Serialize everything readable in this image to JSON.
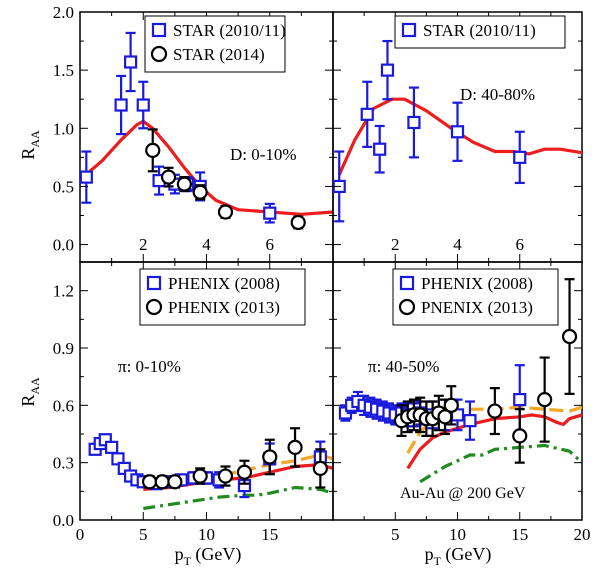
{
  "colors": {
    "star_old": "#1a1adc",
    "star_new": "#000000",
    "model_solid": "#ee1c1c",
    "model_dash_orange": "#f5a623",
    "model_dashdot_green": "#1e8c1e"
  },
  "labels": {
    "raa": "R",
    "raa_sub": "AA",
    "pt": "p",
    "pt_sub": "T",
    "pt_unit": " (GeV)",
    "collision": "Au-Au @ 200 GeV"
  },
  "chart_data": [
    {
      "id": "top_left",
      "type": "scatter",
      "annotation": "D: 0-10%",
      "ylabel": "R_AA",
      "xlim": [
        0,
        8
      ],
      "ylim": [
        -0.15,
        2.0
      ],
      "yticks": [
        "0.0",
        "0.5",
        "1.0",
        "1.5",
        "2.0"
      ],
      "xticks": [
        "2",
        "4",
        "6"
      ],
      "legend": [
        {
          "marker": "square",
          "label": "STAR (2010/11)"
        },
        {
          "marker": "circle",
          "label": "STAR (2014)"
        }
      ],
      "series": [
        {
          "name": "STAR (2010/11)",
          "marker": "square",
          "points": [
            [
              0.2,
              0.58,
              0.22
            ],
            [
              1.3,
              1.2,
              0.25
            ],
            [
              1.6,
              1.57,
              0.25
            ],
            [
              2.0,
              1.2,
              0.2
            ],
            [
              2.5,
              0.55,
              0.12
            ],
            [
              3.0,
              0.52,
              0.08
            ],
            [
              3.4,
              0.52,
              0.06
            ],
            [
              3.8,
              0.5,
              0.12
            ],
            [
              6.0,
              0.27,
              0.08
            ]
          ]
        },
        {
          "name": "STAR (2014)",
          "marker": "circle",
          "points": [
            [
              2.3,
              0.81,
              0.18
            ],
            [
              2.8,
              0.58,
              0.08
            ],
            [
              3.3,
              0.52,
              0.06
            ],
            [
              3.8,
              0.45,
              0.06
            ],
            [
              4.6,
              0.28,
              0.05
            ],
            [
              6.9,
              0.19,
              0.05
            ]
          ]
        }
      ],
      "curves": [
        {
          "style": "solid",
          "points": [
            [
              0.1,
              0.58
            ],
            [
              0.7,
              0.72
            ],
            [
              1.3,
              0.9
            ],
            [
              1.8,
              1.03
            ],
            [
              2.0,
              1.06
            ],
            [
              2.3,
              1.0
            ],
            [
              2.8,
              0.84
            ],
            [
              3.3,
              0.66
            ],
            [
              3.8,
              0.5
            ],
            [
              4.3,
              0.38
            ],
            [
              5.0,
              0.3
            ],
            [
              6.0,
              0.28
            ],
            [
              7.0,
              0.26
            ],
            [
              8.0,
              0.28
            ]
          ]
        }
      ]
    },
    {
      "id": "top_right",
      "type": "scatter",
      "annotation": "D: 40-80%",
      "xlim": [
        0,
        8
      ],
      "ylim": [
        -0.15,
        2.0
      ],
      "xticks": [
        "2",
        "4",
        "6"
      ],
      "legend": [
        {
          "marker": "square",
          "label": "STAR (2010/11)"
        }
      ],
      "series": [
        {
          "name": "STAR (2010/11)",
          "marker": "square",
          "points": [
            [
              0.2,
              0.5,
              0.3
            ],
            [
              1.1,
              1.12,
              0.28
            ],
            [
              1.5,
              0.82,
              0.2
            ],
            [
              1.75,
              1.5,
              0.25
            ],
            [
              2.6,
              1.05,
              0.3
            ],
            [
              4.0,
              0.97,
              0.25
            ],
            [
              6.0,
              0.75,
              0.22
            ]
          ]
        }
      ],
      "curves": [
        {
          "style": "solid",
          "points": [
            [
              0.2,
              0.6
            ],
            [
              0.7,
              0.9
            ],
            [
              1.3,
              1.17
            ],
            [
              1.9,
              1.25
            ],
            [
              2.3,
              1.25
            ],
            [
              3.0,
              1.15
            ],
            [
              3.8,
              1.0
            ],
            [
              4.5,
              0.88
            ],
            [
              5.2,
              0.8
            ],
            [
              5.8,
              0.8
            ],
            [
              6.3,
              0.78
            ],
            [
              6.8,
              0.82
            ],
            [
              7.3,
              0.82
            ],
            [
              8.0,
              0.79
            ]
          ]
        }
      ]
    },
    {
      "id": "bottom_left",
      "type": "scatter",
      "annotation": "π: 0-10%",
      "ylabel": "R_AA",
      "xlabel": "p_T (GeV)",
      "xlim": [
        0,
        20
      ],
      "ylim": [
        0.0,
        1.35
      ],
      "yticks": [
        "0.0",
        "0.3",
        "0.6",
        "0.9",
        "1.2"
      ],
      "xticks": [
        "0",
        "5",
        "10",
        "15"
      ],
      "legend": [
        {
          "marker": "square",
          "label": "PHENIX (2008)"
        },
        {
          "marker": "circle",
          "label": "PHENIX (2013)"
        }
      ],
      "series": [
        {
          "name": "PHENIX (2008)",
          "marker": "square",
          "points": [
            [
              1.2,
              0.37,
              0.02
            ],
            [
              1.6,
              0.4,
              0.02
            ],
            [
              2.0,
              0.42,
              0.02
            ],
            [
              2.5,
              0.38,
              0.02
            ],
            [
              3.0,
              0.32,
              0.02
            ],
            [
              3.5,
              0.27,
              0.02
            ],
            [
              4.0,
              0.23,
              0.02
            ],
            [
              4.5,
              0.21,
              0.02
            ],
            [
              5.0,
              0.2,
              0.02
            ],
            [
              6.0,
              0.19,
              0.02
            ],
            [
              7.0,
              0.2,
              0.02
            ],
            [
              8.0,
              0.21,
              0.02
            ],
            [
              9.0,
              0.22,
              0.03
            ],
            [
              10.0,
              0.22,
              0.03
            ],
            [
              11.0,
              0.21,
              0.04
            ],
            [
              13.0,
              0.18,
              0.06
            ],
            [
              15.0,
              0.32,
              0.08
            ],
            [
              19.0,
              0.33,
              0.08
            ]
          ]
        },
        {
          "name": "PHENIX (2013)",
          "marker": "circle",
          "points": [
            [
              5.5,
              0.2,
              0.03
            ],
            [
              6.5,
              0.2,
              0.03
            ],
            [
              7.5,
              0.2,
              0.03
            ],
            [
              9.5,
              0.23,
              0.04
            ],
            [
              11.5,
              0.23,
              0.05
            ],
            [
              13.0,
              0.25,
              0.06
            ],
            [
              15.0,
              0.33,
              0.09
            ],
            [
              17.0,
              0.38,
              0.1
            ],
            [
              19.0,
              0.27,
              0.1
            ]
          ]
        }
      ],
      "curves": [
        {
          "style": "solid",
          "color": "model_solid",
          "points": [
            [
              5.0,
              0.16
            ],
            [
              7.0,
              0.17
            ],
            [
              9.0,
              0.19
            ],
            [
              11.0,
              0.21
            ],
            [
              13.0,
              0.22
            ],
            [
              15.0,
              0.25
            ],
            [
              17.0,
              0.28
            ],
            [
              19.0,
              0.29
            ],
            [
              20.0,
              0.27
            ]
          ]
        },
        {
          "style": "dashed",
          "color": "model_dash_orange",
          "points": [
            [
              5.0,
              0.18
            ],
            [
              7.0,
              0.2
            ],
            [
              9.0,
              0.22
            ],
            [
              11.0,
              0.23
            ],
            [
              13.0,
              0.26
            ],
            [
              15.0,
              0.29
            ],
            [
              17.0,
              0.31
            ],
            [
              19.0,
              0.34
            ],
            [
              20.0,
              0.32
            ]
          ]
        },
        {
          "style": "dashdot",
          "color": "model_dashdot_green",
          "points": [
            [
              5.0,
              0.06
            ],
            [
              7.0,
              0.08
            ],
            [
              9.0,
              0.1
            ],
            [
              11.0,
              0.12
            ],
            [
              13.0,
              0.13
            ],
            [
              14.0,
              0.13
            ],
            [
              15.0,
              0.14
            ],
            [
              17.0,
              0.17
            ],
            [
              19.0,
              0.16
            ],
            [
              20.0,
              0.14
            ]
          ]
        }
      ]
    },
    {
      "id": "bottom_right",
      "type": "scatter",
      "annotation": "π: 40-50%",
      "xlabel": "p_T (GeV)",
      "xlim": [
        0,
        20
      ],
      "ylim": [
        0.0,
        1.35
      ],
      "xticks": [
        "5",
        "10",
        "15",
        "20"
      ],
      "legend": [
        {
          "marker": "square",
          "label": "PHENIX (2008)"
        },
        {
          "marker": "circle",
          "label": "PNENIX (2013)"
        }
      ],
      "series": [
        {
          "name": "PHENIX (2008)",
          "marker": "square",
          "points": [
            [
              1.0,
              0.56,
              0.04
            ],
            [
              1.5,
              0.6,
              0.04
            ],
            [
              2.0,
              0.62,
              0.05
            ],
            [
              2.5,
              0.6,
              0.05
            ],
            [
              3.0,
              0.59,
              0.05
            ],
            [
              3.5,
              0.58,
              0.05
            ],
            [
              4.0,
              0.57,
              0.05
            ],
            [
              4.5,
              0.56,
              0.05
            ],
            [
              5.0,
              0.55,
              0.05
            ],
            [
              5.5,
              0.56,
              0.05
            ],
            [
              6.0,
              0.55,
              0.06
            ],
            [
              6.5,
              0.55,
              0.06
            ],
            [
              7.0,
              0.56,
              0.06
            ],
            [
              8.0,
              0.55,
              0.07
            ],
            [
              9.0,
              0.55,
              0.08
            ],
            [
              10.0,
              0.55,
              0.08
            ],
            [
              11.0,
              0.52,
              0.1
            ],
            [
              15.0,
              0.63,
              0.18
            ]
          ]
        },
        {
          "name": "PNENIX (2013)",
          "marker": "circle",
          "points": [
            [
              5.5,
              0.52,
              0.08
            ],
            [
              6.0,
              0.54,
              0.08
            ],
            [
              6.5,
              0.55,
              0.08
            ],
            [
              7.0,
              0.55,
              0.09
            ],
            [
              7.5,
              0.53,
              0.09
            ],
            [
              8.0,
              0.53,
              0.09
            ],
            [
              8.5,
              0.56,
              0.09
            ],
            [
              9.0,
              0.54,
              0.09
            ],
            [
              9.5,
              0.6,
              0.1
            ],
            [
              13.0,
              0.57,
              0.12
            ],
            [
              15.0,
              0.44,
              0.14
            ],
            [
              17.0,
              0.63,
              0.22
            ],
            [
              19.0,
              0.96,
              0.3
            ]
          ]
        }
      ],
      "curves": [
        {
          "style": "solid",
          "color": "model_solid",
          "points": [
            [
              6.0,
              0.27
            ],
            [
              7.0,
              0.37
            ],
            [
              8.0,
              0.43
            ],
            [
              9.0,
              0.46
            ],
            [
              10.0,
              0.48
            ],
            [
              11.0,
              0.5
            ],
            [
              13.0,
              0.53
            ],
            [
              15.0,
              0.54
            ],
            [
              16.0,
              0.55
            ],
            [
              17.0,
              0.54
            ],
            [
              18.0,
              0.51
            ],
            [
              18.5,
              0.5
            ],
            [
              19.0,
              0.53
            ],
            [
              20.0,
              0.55
            ]
          ]
        },
        {
          "style": "dashed",
          "color": "model_dash_orange",
          "points": [
            [
              6.0,
              0.35
            ],
            [
              7.0,
              0.46
            ],
            [
              8.0,
              0.52
            ],
            [
              9.0,
              0.54
            ],
            [
              10.0,
              0.56
            ],
            [
              11.0,
              0.58
            ],
            [
              13.0,
              0.58
            ],
            [
              15.0,
              0.59
            ],
            [
              17.0,
              0.58
            ],
            [
              19.0,
              0.57
            ],
            [
              20.0,
              0.59
            ]
          ]
        },
        {
          "style": "dashdot",
          "color": "model_dashdot_green",
          "points": [
            [
              7.0,
              0.2
            ],
            [
              8.0,
              0.24
            ],
            [
              9.0,
              0.28
            ],
            [
              10.0,
              0.31
            ],
            [
              11.0,
              0.34
            ],
            [
              12.0,
              0.34
            ],
            [
              13.0,
              0.37
            ],
            [
              15.0,
              0.38
            ],
            [
              17.0,
              0.39
            ],
            [
              19.0,
              0.36
            ],
            [
              20.0,
              0.3
            ]
          ]
        }
      ]
    }
  ]
}
